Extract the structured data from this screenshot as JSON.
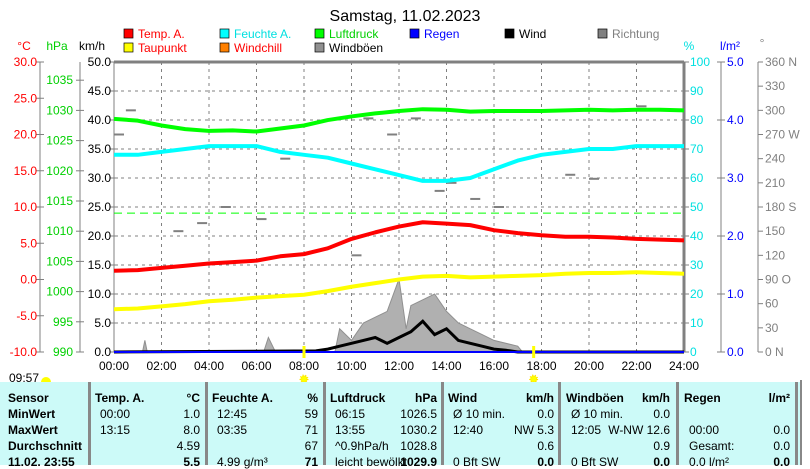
{
  "title": "Samstag, 11.02.2023",
  "axes": {
    "temp_unit": "°C",
    "press_unit": "hPa",
    "wind_unit": "km/h",
    "hum_unit": "%",
    "rain_unit": "l/m²",
    "dir_unit": "°",
    "temp_ticks": [
      "30.0",
      "25.0",
      "20.0",
      "15.0",
      "10.0",
      "5.0",
      "0.0",
      "-5.0",
      "-10.0"
    ],
    "press_ticks": [
      "1035",
      "1030",
      "1025",
      "1020",
      "1015",
      "1010",
      "1005",
      "1000",
      "995",
      "990"
    ],
    "wind_ticks": [
      "50.0",
      "45.0",
      "40.0",
      "35.0",
      "30.0",
      "25.0",
      "20.0",
      "15.0",
      "10.0",
      "5.0",
      "0.0"
    ],
    "hum_ticks": [
      "100",
      "90",
      "80",
      "70",
      "60",
      "50",
      "40",
      "30",
      "20",
      "10",
      "0"
    ],
    "rain_ticks": [
      "5.0",
      "4.0",
      "3.0",
      "2.0",
      "1.0",
      "0.0"
    ],
    "dir_ticks": [
      "360 N",
      "330",
      "300",
      "270 W",
      "240",
      "210",
      "180 S",
      "150",
      "120",
      "90  O",
      "60",
      "30",
      "0   N"
    ],
    "x_ticks": [
      "00:00",
      "02:00",
      "04:00",
      "06:00",
      "08:00",
      "10:00",
      "12:00",
      "14:00",
      "16:00",
      "18:00",
      "20:00",
      "22:00",
      "24:00"
    ]
  },
  "legend": [
    {
      "label": "Temp. A.",
      "color": "#ff0000",
      "text_color": "#ff0000"
    },
    {
      "label": "Feuchte A.",
      "color": "#00ffff",
      "text_color": "#00e0e0"
    },
    {
      "label": "Luftdruck",
      "color": "#00ff00",
      "text_color": "#00d000"
    },
    {
      "label": "Regen",
      "color": "#0000ff",
      "text_color": "#0000ff"
    },
    {
      "label": "Wind",
      "color": "#000000",
      "text_color": "#000000"
    },
    {
      "label": "Richtung",
      "color": "#808080",
      "text_color": "#808080"
    },
    {
      "label": "Taupunkt",
      "color": "#ffff00",
      "text_color": "#ff0000"
    },
    {
      "label": "Windchill",
      "color": "#ff8000",
      "text_color": "#ff0000"
    },
    {
      "label": "Windböen",
      "color": "#909090",
      "text_color": "#000000"
    }
  ],
  "sun": {
    "time": "09:57",
    "sunrise_hour": 8.0,
    "sunset_hour": 17.67
  },
  "chart_data": {
    "type": "line",
    "title": "Samstag, 11.02.2023",
    "xlim": [
      0,
      24
    ],
    "x": [
      0,
      1,
      2,
      3,
      4,
      5,
      6,
      7,
      8,
      9,
      10,
      11,
      12,
      13,
      14,
      15,
      16,
      17,
      18,
      19,
      20,
      21,
      22,
      23,
      24
    ],
    "series": [
      {
        "name": "Temp. A.",
        "unit": "°C",
        "ylim": [
          -10,
          30
        ],
        "values": [
          1.2,
          1.3,
          1.6,
          1.9,
          2.2,
          2.4,
          2.6,
          3.2,
          3.5,
          4.3,
          5.6,
          6.5,
          7.3,
          7.9,
          7.7,
          7.5,
          6.8,
          6.4,
          6.1,
          5.9,
          5.9,
          5.8,
          5.6,
          5.5,
          5.4
        ]
      },
      {
        "name": "Taupunkt",
        "unit": "°C",
        "ylim": [
          -10,
          30
        ],
        "values": [
          -4.1,
          -4.0,
          -3.7,
          -3.4,
          -3.0,
          -2.8,
          -2.5,
          -2.3,
          -2.1,
          -1.6,
          -1.0,
          -0.5,
          0.0,
          0.4,
          0.5,
          0.3,
          0.4,
          0.5,
          0.6,
          0.8,
          0.9,
          0.9,
          1.0,
          0.9,
          0.8
        ]
      },
      {
        "name": "Feuchte A.",
        "unit": "%",
        "ylim": [
          0,
          100
        ],
        "values": [
          68,
          68,
          69,
          70,
          71,
          71,
          71,
          69,
          68,
          67,
          65,
          63,
          61,
          59,
          59,
          60,
          63,
          66,
          68,
          69,
          70,
          70,
          71,
          71,
          71
        ]
      },
      {
        "name": "Luftdruck",
        "unit": "hPa",
        "ylim": [
          990,
          1038
        ],
        "values": [
          1028.6,
          1028.3,
          1027.5,
          1026.9,
          1026.6,
          1026.7,
          1026.5,
          1027.0,
          1027.5,
          1028.4,
          1029.0,
          1029.5,
          1029.9,
          1030.2,
          1030.1,
          1029.8,
          1029.9,
          1029.9,
          1029.9,
          1030.0,
          1030.1,
          1030.0,
          1030.1,
          1030.1,
          1030.0
        ]
      }
    ],
    "wind": {
      "unit": "km/h",
      "ylim": [
        0,
        50
      ],
      "x": [
        0,
        8.5,
        9,
        9.5,
        10,
        10.5,
        11,
        11.5,
        12,
        12.5,
        13,
        13.5,
        14,
        14.5,
        15,
        15.5,
        16,
        16.5,
        17,
        24
      ],
      "values": [
        0,
        0.2,
        0.5,
        1,
        1.5,
        2,
        2.5,
        1.5,
        2.5,
        3.5,
        5.3,
        3,
        4,
        2,
        1.5,
        1,
        0.5,
        0.3,
        0,
        0
      ]
    },
    "gusts": {
      "unit": "km/h",
      "x": [
        0,
        1.2,
        1.3,
        1.4,
        6.3,
        6.5,
        6.8,
        9.3,
        9.5,
        10,
        10.5,
        11,
        11.5,
        12,
        12.3,
        12.5,
        13,
        13.5,
        14,
        14.5,
        15,
        15.5,
        16,
        17,
        17.2,
        24
      ],
      "values": [
        0,
        0,
        2,
        0,
        0,
        2.5,
        0,
        0,
        4,
        2,
        5,
        6,
        7,
        12.6,
        4,
        8,
        9,
        10,
        7,
        5,
        4,
        3,
        2,
        1,
        0,
        0
      ]
    },
    "direction": {
      "unit": "°",
      "points": [
        [
          0,
          270
        ],
        [
          0.5,
          300
        ],
        [
          2.5,
          150
        ],
        [
          3.5,
          160
        ],
        [
          4.5,
          180
        ],
        [
          6,
          165
        ],
        [
          7,
          240
        ],
        [
          10,
          120
        ],
        [
          10.5,
          290
        ],
        [
          11.5,
          270
        ],
        [
          12.5,
          290
        ],
        [
          13.5,
          200
        ],
        [
          14,
          210
        ],
        [
          15,
          190
        ],
        [
          16,
          180
        ],
        [
          18.5,
          300
        ],
        [
          19,
          220
        ],
        [
          20,
          215
        ],
        [
          21,
          300
        ],
        [
          22,
          305
        ]
      ]
    },
    "rain": {
      "unit": "l/m²",
      "ylim": [
        0,
        5
      ],
      "values": [
        0,
        0
      ]
    },
    "reference_line_hpa": 1013
  },
  "table": {
    "headers": {
      "sensor": "Sensor",
      "temp": "Temp. A.",
      "temp_u": "°C",
      "hum": "Feuchte A.",
      "hum_u": "%",
      "press": "Luftdruck",
      "press_u": "hPa",
      "wind": "Wind",
      "wind_u": "km/h",
      "gust": "Windböen",
      "gust_u": "km/h",
      "rain": "Regen",
      "rain_u": "l/m²"
    },
    "rows": [
      {
        "label": "MinWert",
        "temp_t": "00:00",
        "temp_v": "1.0",
        "hum_t": "12:45",
        "hum_v": "59",
        "press_t": "06:15",
        "press_v": "1026.5",
        "wind_t": "Ø 10 min.",
        "wind_v": "0.0",
        "gust_t": "Ø 10 min.",
        "gust_v": "0.0",
        "rain_t": "",
        "rain_v": ""
      },
      {
        "label": "MaxWert",
        "temp_t": "13:15",
        "temp_v": "8.0",
        "hum_t": "03:35",
        "hum_v": "71",
        "press_t": "13:55",
        "press_v": "1030.2",
        "wind_t": "12:40",
        "wind_v": "NW 5.3",
        "gust_t": "12:05",
        "gust_v": "W-NW 12.6",
        "rain_t": "00:00",
        "rain_v": "0.0"
      },
      {
        "label": "Durchschnitt",
        "temp_t": "",
        "temp_v": "4.59",
        "hum_t": "",
        "hum_v": "67",
        "press_t": "^0.9hPa/h",
        "press_v": "1028.8",
        "wind_t": "",
        "wind_v": "0.6",
        "gust_t": "",
        "gust_v": "0.9",
        "rain_t": "Gesamt:",
        "rain_v": "0.0"
      },
      {
        "label": "11.02. 23:55",
        "temp_t": "",
        "temp_v": "5.5",
        "hum_t": "4.99 g/m³",
        "hum_v": "71",
        "press_t": "leicht bewölkt",
        "press_v": "1029.9",
        "wind_t": "0 Bft SW",
        "wind_v": "0.0",
        "gust_t": "0 Bft SW",
        "gust_v": "0.0",
        "rain_t": "0.0 l/m²",
        "rain_v": "0.0"
      }
    ]
  }
}
